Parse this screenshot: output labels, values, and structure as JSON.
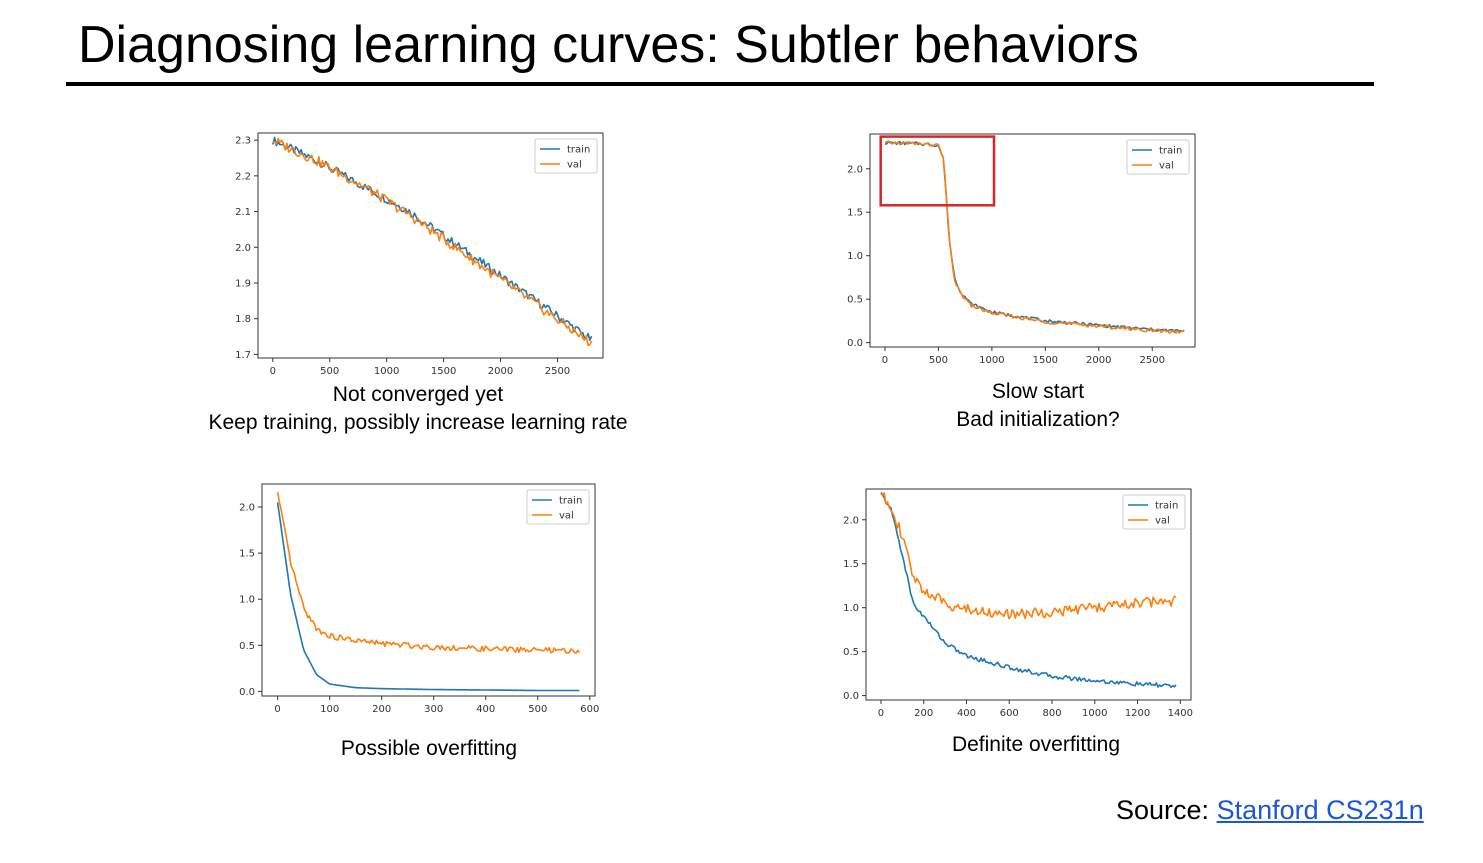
{
  "slide": {
    "title": "Diagnosing learning curves: Subtler behaviors",
    "source_label": "Source:",
    "source_link": "Stanford CS231n"
  },
  "colors": {
    "train": "#1f77b4",
    "val": "#ff7f0e",
    "highlight": "#d62728",
    "link": "#1a56d9"
  },
  "chart_data": [
    {
      "type": "line",
      "caption": [
        "Not converged yet",
        "Keep training, possibly increase learning rate"
      ],
      "xlim": [
        -130,
        2900
      ],
      "ylim": [
        1.69,
        2.32
      ],
      "xticks": [
        0,
        500,
        1000,
        1500,
        2000,
        2500
      ],
      "yticks": [
        1.7,
        1.8,
        1.9,
        2.0,
        2.1,
        2.2,
        2.3
      ],
      "legend": "top-right",
      "series": [
        {
          "name": "train",
          "x": [
            0,
            400,
            800,
            1200,
            1600,
            2000,
            2400,
            2800
          ],
          "y": [
            2.3,
            2.24,
            2.17,
            2.1,
            2.01,
            1.92,
            1.83,
            1.74
          ]
        },
        {
          "name": "val",
          "x": [
            0,
            400,
            800,
            1200,
            1600,
            2000,
            2400,
            2800
          ],
          "y": [
            2.3,
            2.24,
            2.17,
            2.09,
            2.0,
            1.91,
            1.82,
            1.73
          ]
        }
      ]
    },
    {
      "type": "line",
      "caption": [
        "Slow start",
        "Bad initialization?"
      ],
      "xlim": [
        -140,
        2900
      ],
      "ylim": [
        -0.05,
        2.4
      ],
      "xticks": [
        0,
        500,
        1000,
        1500,
        2000,
        2500
      ],
      "yticks": [
        0.0,
        0.5,
        1.0,
        1.5,
        2.0
      ],
      "legend": "top-right",
      "highlight_box": {
        "x": [
          -40,
          1020
        ],
        "y": [
          1.58,
          2.37
        ]
      },
      "series": [
        {
          "name": "train",
          "x": [
            0,
            300,
            500,
            550,
            600,
            650,
            700,
            800,
            1000,
            1500,
            2000,
            2500,
            2800
          ],
          "y": [
            2.3,
            2.29,
            2.27,
            2.1,
            1.2,
            0.75,
            0.6,
            0.45,
            0.35,
            0.25,
            0.2,
            0.15,
            0.13
          ]
        },
        {
          "name": "val",
          "x": [
            0,
            300,
            500,
            550,
            600,
            650,
            700,
            800,
            1000,
            1500,
            2000,
            2500,
            2800
          ],
          "y": [
            2.3,
            2.29,
            2.27,
            2.1,
            1.2,
            0.72,
            0.58,
            0.43,
            0.34,
            0.24,
            0.19,
            0.14,
            0.12
          ]
        }
      ]
    },
    {
      "type": "line",
      "caption": [
        "Possible overfitting"
      ],
      "xlim": [
        -30,
        610
      ],
      "ylim": [
        -0.05,
        2.25
      ],
      "xticks": [
        0,
        100,
        200,
        300,
        400,
        500,
        600
      ],
      "yticks": [
        0.0,
        0.5,
        1.0,
        1.5,
        2.0
      ],
      "legend": "top-right",
      "series": [
        {
          "name": "train",
          "x": [
            0,
            25,
            50,
            75,
            100,
            150,
            200,
            300,
            400,
            500,
            580
          ],
          "y": [
            2.05,
            1.05,
            0.45,
            0.18,
            0.08,
            0.04,
            0.03,
            0.02,
            0.015,
            0.01,
            0.01
          ]
        },
        {
          "name": "val",
          "x": [
            0,
            25,
            50,
            75,
            100,
            150,
            200,
            300,
            400,
            500,
            580
          ],
          "y": [
            2.15,
            1.4,
            0.9,
            0.68,
            0.6,
            0.55,
            0.52,
            0.48,
            0.46,
            0.45,
            0.43
          ]
        }
      ]
    },
    {
      "type": "line",
      "caption": [
        "Definite overfitting"
      ],
      "xlim": [
        -70,
        1450
      ],
      "ylim": [
        -0.05,
        2.35
      ],
      "xticks": [
        0,
        200,
        400,
        600,
        800,
        1000,
        1200,
        1400
      ],
      "yticks": [
        0.0,
        0.5,
        1.0,
        1.5,
        2.0
      ],
      "legend": "top-right",
      "series": [
        {
          "name": "train",
          "x": [
            0,
            50,
            100,
            150,
            200,
            300,
            400,
            600,
            800,
            1000,
            1200,
            1380
          ],
          "y": [
            2.3,
            2.1,
            1.6,
            1.05,
            0.9,
            0.6,
            0.45,
            0.32,
            0.22,
            0.17,
            0.13,
            0.11
          ]
        },
        {
          "name": "val",
          "x": [
            0,
            50,
            100,
            150,
            200,
            300,
            400,
            600,
            800,
            1000,
            1200,
            1380
          ],
          "y": [
            2.3,
            2.15,
            1.8,
            1.35,
            1.2,
            1.05,
            0.98,
            0.92,
            0.95,
            1.0,
            1.05,
            1.08
          ]
        }
      ]
    }
  ]
}
